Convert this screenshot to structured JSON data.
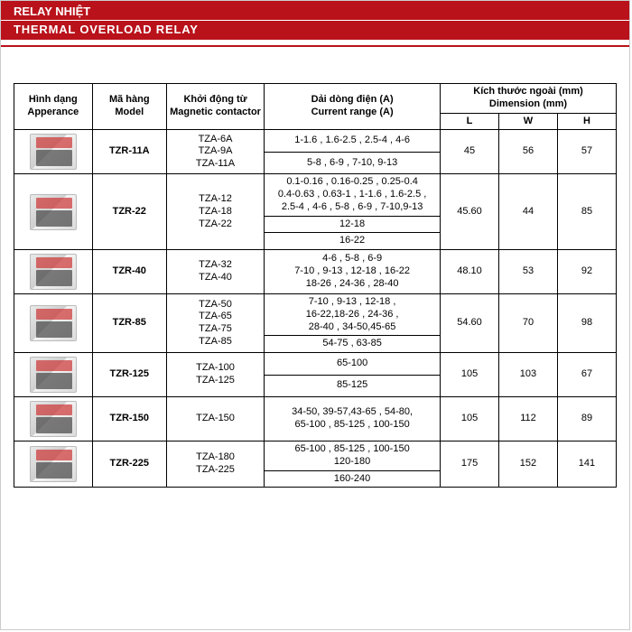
{
  "colors": {
    "brand": "#b9121b",
    "text": "#000",
    "bg": "#fff"
  },
  "header": {
    "title_vi": "RELAY NHIỆT",
    "title_en": "THERMAL OVERLOAD RELAY"
  },
  "table": {
    "headers": {
      "appearance_vi": "Hình dạng",
      "appearance_en": "Apperance",
      "model_vi": "Mã hàng",
      "model_en": "Model",
      "mag_vi": "Khởi động từ",
      "mag_en": "Magnetic contactor",
      "current_vi": "Dải dòng điện (A)",
      "current_en": "Current range (A)",
      "dim_vi": "Kích thước ngoài (mm)",
      "dim_en": "Dimension (mm)",
      "L": "L",
      "W": "W",
      "H": "H"
    },
    "rows": [
      {
        "model": "TZR-11A",
        "magnetic": "TZA-6A\nTZA-9A\nTZA-11A",
        "currents": [
          "1-1.6 , 1.6-2.5 , 2.5-4 , 4-6",
          "5-8 , 6-9 , 7-10, 9-13"
        ],
        "L": "45",
        "W": "56",
        "H": "57"
      },
      {
        "model": "TZR-22",
        "magnetic": "TZA-12\nTZA-18\nTZA-22",
        "currents": [
          "0.1-0.16 , 0.16-0.25 , 0.25-0.4\n0.4-0.63 , 0.63-1 , 1-1.6 , 1.6-2.5 ,\n2.5-4 , 4-6 , 5-8 , 6-9 , 7-10,9-13",
          "12-18",
          "16-22"
        ],
        "L": "45.60",
        "W": "44",
        "H": "85"
      },
      {
        "model": "TZR-40",
        "magnetic": "TZA-32\nTZA-40",
        "currents": [
          "4-6 , 5-8 , 6-9\n7-10 , 9-13 , 12-18 , 16-22\n18-26 , 24-36 , 28-40"
        ],
        "L": "48.10",
        "W": "53",
        "H": "92"
      },
      {
        "model": "TZR-85",
        "magnetic": "TZA-50\nTZA-65\nTZA-75\nTZA-85",
        "currents": [
          "7-10 , 9-13 , 12-18 ,\n16-22,18-26 , 24-36 ,\n28-40 , 34-50,45-65",
          "54-75 , 63-85"
        ],
        "L": "54.60",
        "W": "70",
        "H": "98"
      },
      {
        "model": "TZR-125",
        "magnetic": "TZA-100\nTZA-125",
        "currents": [
          "65-100",
          "85-125"
        ],
        "L": "105",
        "W": "103",
        "H": "67"
      },
      {
        "model": "TZR-150",
        "magnetic": "TZA-150",
        "currents": [
          "34-50, 39-57,43-65 , 54-80,\n65-100 , 85-125 , 100-150"
        ],
        "L": "105",
        "W": "112",
        "H": "89"
      },
      {
        "model": "TZR-225",
        "magnetic": "TZA-180\nTZA-225",
        "currents": [
          "65-100 , 85-125 , 100-150\n120-180",
          "160-240"
        ],
        "L": "175",
        "W": "152",
        "H": "141"
      }
    ]
  }
}
